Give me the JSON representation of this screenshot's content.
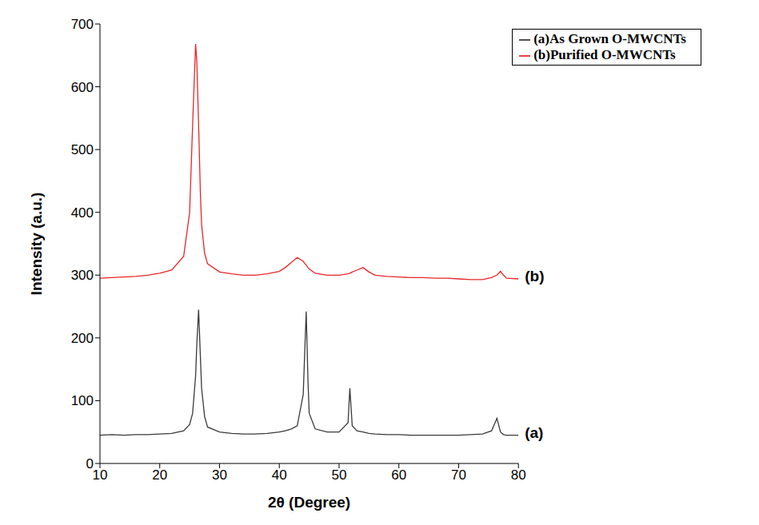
{
  "chart_data": {
    "type": "line",
    "x_label": "2θ (Degree)",
    "y_label": "Intensity (a.u.)",
    "x": [
      10,
      12,
      14,
      16,
      18,
      20,
      22,
      24,
      25,
      25.5,
      26,
      26.2,
      26.5,
      26.8,
      27,
      27.5,
      28,
      30,
      32,
      34,
      36,
      38,
      40,
      41,
      42,
      43,
      44,
      44.3,
      44.5,
      44.8,
      45,
      46,
      48,
      50,
      51.5,
      51.8,
      52.2,
      53,
      54,
      55,
      56,
      58,
      60,
      62,
      64,
      66,
      68,
      70,
      72,
      74,
      75.5,
      76.4,
      77,
      77.5,
      78,
      80
    ],
    "series": [
      {
        "name": "(a)As Grown O-MWCNTs",
        "color": "#3a3a3a",
        "values": [
          45,
          46,
          45,
          46,
          46,
          47,
          48,
          52,
          62,
          80,
          140,
          190,
          245,
          170,
          120,
          75,
          58,
          50,
          48,
          47,
          47,
          48,
          50,
          52,
          55,
          60,
          110,
          190,
          242,
          130,
          80,
          55,
          50,
          50,
          65,
          120,
          60,
          52,
          50,
          48,
          47,
          46,
          46,
          45,
          45,
          45,
          45,
          45,
          46,
          47,
          52,
          72,
          50,
          46,
          45,
          45
        ]
      },
      {
        "name": "(b)Purified O-MWCNTs",
        "color": "#e8262a",
        "values": [
          295,
          296,
          297,
          298,
          300,
          303,
          308,
          330,
          400,
          540,
          668,
          640,
          540,
          430,
          380,
          335,
          318,
          305,
          302,
          300,
          300,
          302,
          306,
          312,
          320,
          328,
          322,
          318,
          316,
          312,
          310,
          303,
          300,
          300,
          302,
          303,
          305,
          308,
          312,
          305,
          300,
          298,
          297,
          296,
          296,
          295,
          295,
          294,
          293,
          293,
          296,
          300,
          306,
          300,
          295,
          294
        ]
      }
    ],
    "annotations": [
      "(a)",
      "(b)"
    ],
    "xlim": [
      10,
      80
    ],
    "xticks": [
      10,
      20,
      30,
      40,
      50,
      60,
      70,
      80
    ],
    "ylim": [
      0,
      700
    ],
    "yticks": [
      0,
      100,
      200,
      300,
      400,
      500,
      600,
      700
    ],
    "legend": "upper right",
    "grid": false
  }
}
